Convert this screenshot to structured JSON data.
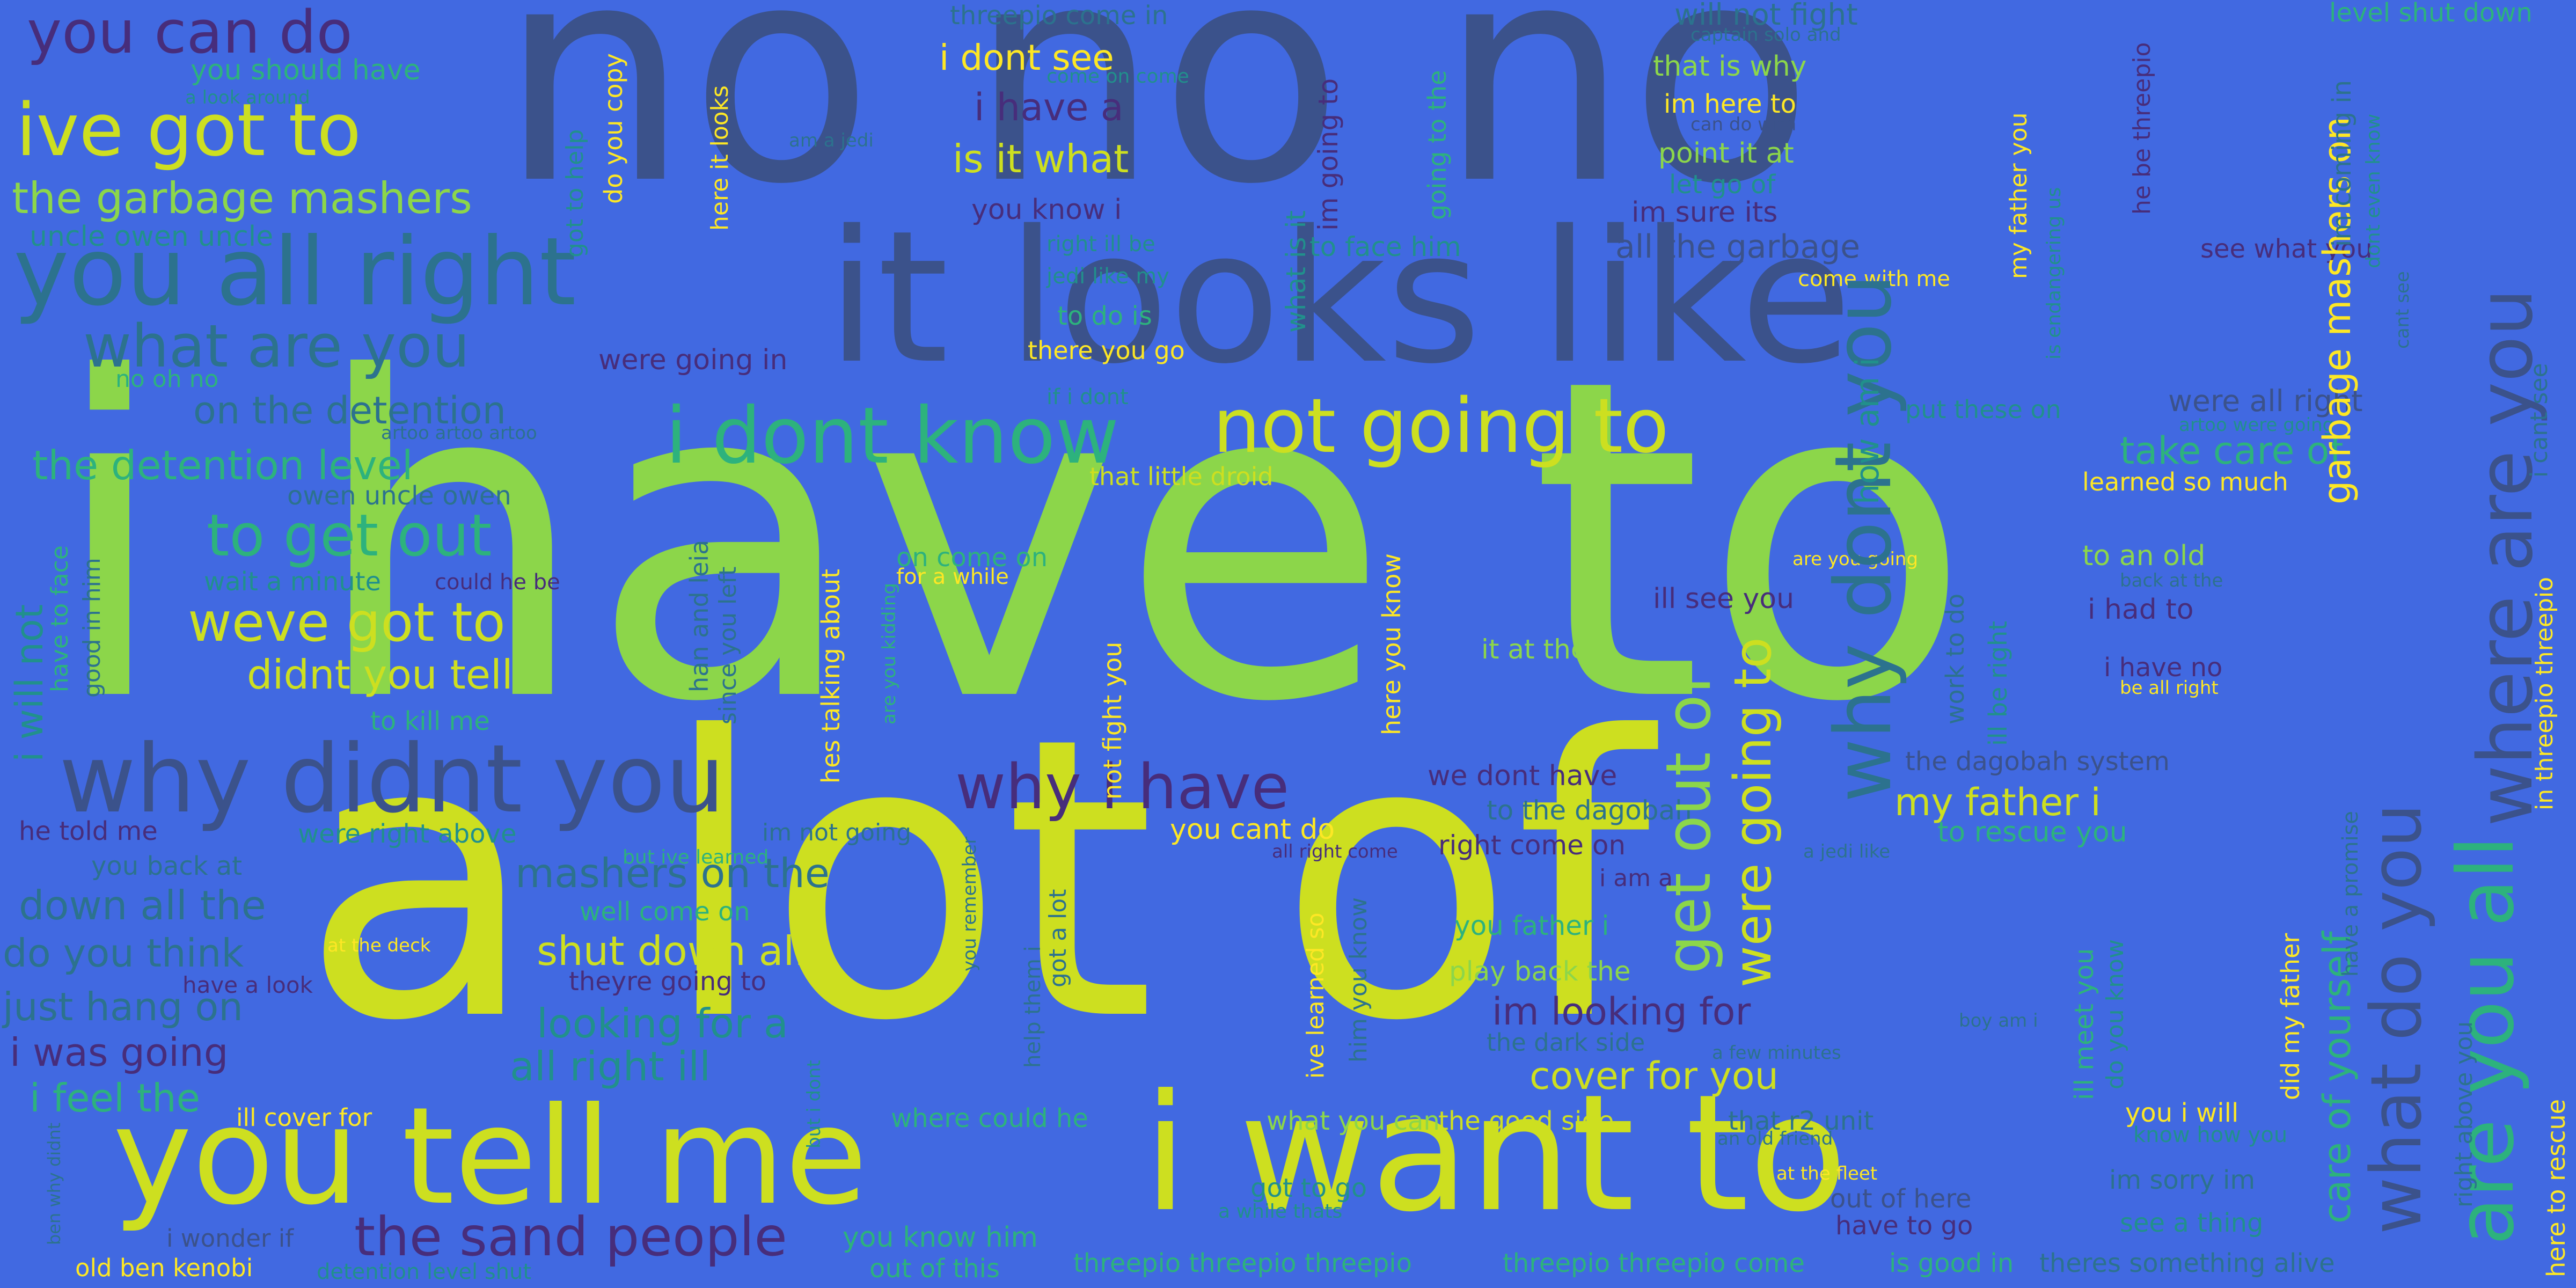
{
  "background": "#4169e1",
  "palette": {
    "c1": "#cddf20",
    "c2": "#8cd64a",
    "c3": "#2db27d",
    "c4": "#21908c",
    "c5": "#2c728e",
    "c6": "#3b528b",
    "c7": "#472d7b",
    "c8": "#5ec962",
    "c9": "#fde725"
  },
  "words": {
    "i_have_to": "i have to",
    "a_lot_of": "a lot of",
    "no_no_no": "no no no",
    "it_looks_like": "it looks like",
    "you_tell_me": "you tell me",
    "i_want_to": "i want to",
    "why_didnt_you": "why didnt you",
    "you_all_right": "you all right",
    "ive_got_to": "ive got to",
    "i_dont_know": "i dont know",
    "not_going_to": "not going to",
    "where_are_you": "where are you",
    "are_you_all": "are you all",
    "why_dont_you": "why dont you",
    "what_do_you": "what do you",
    "get_out_of": "get out of",
    "were_going_to": "were going to",
    "the_sand_people": "the sand people",
    "you_can_do": "you can do",
    "the_garbage_mashers": "the garbage mashers",
    "what_are_you": "what are you",
    "why_i_have": "why i have",
    "to_get_out": "to get out",
    "weve_got_to": "weve got to",
    "didnt_you_tell": "didnt you tell",
    "the_detention_level": "the detention level",
    "on_the_detention": "on the detention",
    "shut_down_all": "shut down all",
    "garbage_mashers_on": "garbage mashers on",
    "care_of_yourself": "care of yourself",
    "i_have_a": "i have a",
    "is_it_what": "is it what",
    "i_dont_see": "i dont see",
    "you_should_have": "you should have",
    "uncle_owen_uncle": "uncle owen uncle",
    "down_all_the": "down all the",
    "do_you_think": "do you think",
    "just_hang_on": "just hang on",
    "i_was_going": "i was going",
    "i_feel_the": "i feel the",
    "mashers_on_the": "mashers on the",
    "looking_for_a": "looking for a",
    "all_right_ill": "all right ill",
    "im_looking_for": "im looking for",
    "cover_for_you": "cover for you",
    "my_father_i": "my father i",
    "take_care_of": "take care of",
    "were_all_right": "were all right",
    "all_the_garbage": "all the garbage",
    "how_am_i": "how am i",
    "i_will_not": "i will not",
    "threepio_threepio_threepio": "threepio threepio threepio",
    "threepio_threepio_come": "threepio threepio come",
    "is_good_in": "is good in",
    "theres_something_alive": "theres something alive",
    "old_ben_kenobi": "old ben kenobi",
    "detention_level_shut": "detention level shut",
    "out_of_this": "out of this",
    "you_know_him": "you know him",
    "i_wonder_if": "i wonder if",
    "ill_cover_for": "ill cover for",
    "where_could_he": "where could he",
    "what_you_can": "what you can",
    "the_good_side": "the good side",
    "got_to_go": "got to go",
    "out_of_here": "out of here",
    "have_to_go": "have to go",
    "see_a_thing": "see a thing",
    "you_i_will": "you i will",
    "im_sorry_im": "im sorry im",
    "know_how_you": "know how you",
    "that_r2_unit": "that r2 unit",
    "an_old_friend": "an old friend",
    "at_the_fleet": "at the fleet",
    "a_while_thats": "a while thats",
    "threepio_come_in": "threepio come in",
    "come_on_come": "come on come",
    "will_not_fight": "will not fight",
    "captain_solo_and": "captain solo and",
    "that_is_why": "that is why",
    "im_here_to": "im here to",
    "can_do_with": "can do with",
    "point_it_at": "point it at",
    "let_go_of": "let go of",
    "im_sure_its": "im sure its",
    "level_shut_down": "level shut down",
    "im_coming_in": "im coming in",
    "dont_even_know": "dont even know",
    "cant_see": "cant see",
    "see_what_you": "see what you",
    "come_with_me": "come with me",
    "to_face_him": "to face him",
    "you_know_i": "you know i",
    "right_ill_be": "right ill be",
    "jedi_like_my": "jedi like my",
    "to_do_is": "to do is",
    "there_you_go": "there you go",
    "if_i_dont": "if i dont",
    "were_going_in": "were going in",
    "no_oh_no": "no oh no",
    "artoo_artoo_artoo": "artoo artoo artoo",
    "owen_uncle_owen": "owen uncle owen",
    "a_look_around": "a look around",
    "am_a_jedi": "am a jedi",
    "do_you_copy": "do you copy",
    "got_to_help": "got to help",
    "here_it_looks": "here it looks",
    "im_going_to": "im going to",
    "going_to_the": "going to the",
    "what_is_it": "what is it",
    "that_little_droid": "that little droid",
    "put_these_on": "put these on",
    "artoo_were_going": "artoo were going",
    "learned_so_much": "learned so much",
    "to_an_old": "to an old",
    "back_at_the": "back at the",
    "i_had_to": "i had to",
    "i_have_no": "i have no",
    "be_all_right": "be all right",
    "are_you_going": "are you going",
    "ill_see_you": "ill see you",
    "it_at_the": "it at the",
    "on_come_on": "on come on",
    "for_a_while": "for a while",
    "wait_a_minute": "wait a minute",
    "could_he_be": "could he be",
    "to_kill_me": "to kill me",
    "he_told_me": "he told me",
    "you_back_at": "you back at",
    "were_right_above": "were right above",
    "but_ive_learned": "but ive learned",
    "im_not_going": "im not going",
    "well_come_on": "well come on",
    "theyre_going_to": "theyre going to",
    "have_a_look": "have a look",
    "at_the_deck": "at the deck",
    "we_dont_have": "we dont have",
    "to_the_dagobah": "to the dagobah",
    "the_dagobah_system": "the dagobah system",
    "you_cant_do": "you cant do",
    "all_right_come": "all right come",
    "right_come_on": "right come on",
    "a_jedi_like": "a jedi like",
    "to_rescue_you": "to rescue you",
    "i_am_a": "i am a",
    "you_father_i": "you father i",
    "play_back_the": "play back the",
    "the_dark_side": "the dark side",
    "a_few_minutes": "a few minutes",
    "boy_am_i": "boy am i",
    "in_threepio_threepio": "in threepio threepio",
    "i_cant_see": "i cant see",
    "here_to_rescue": "here to rescue",
    "right_above_you": "right above you",
    "have_a_promise": "have a promise",
    "did_my_father": "did my father",
    "ill_meet_you": "ill meet you",
    "do_you_know": "do you know",
    "ive_learned_so": "ive learned so",
    "him_you_know": "him you know",
    "got_a_lot": "got a lot",
    "help_them_i": "help them i",
    "but_i_dont": "but i dont",
    "ben_why_didnt": "ben why didnt",
    "not_fight_you": "not fight you",
    "here_you_know": "here you know",
    "hes_talking_about": "hes talking about",
    "are_you_kidding": "are you kidding",
    "han_and_leia": "han and leia",
    "since_you_left": "since you left",
    "good_in_him": "good in him",
    "have_to_face": "have to face",
    "work_to_do": "work to do",
    "ill_be_right": "ill be right",
    "you_remember": "you remember",
    "my_father_you": "my father you",
    "is_endangering_us": "is endangering us",
    "he_be_threepio": "he be threepio"
  }
}
